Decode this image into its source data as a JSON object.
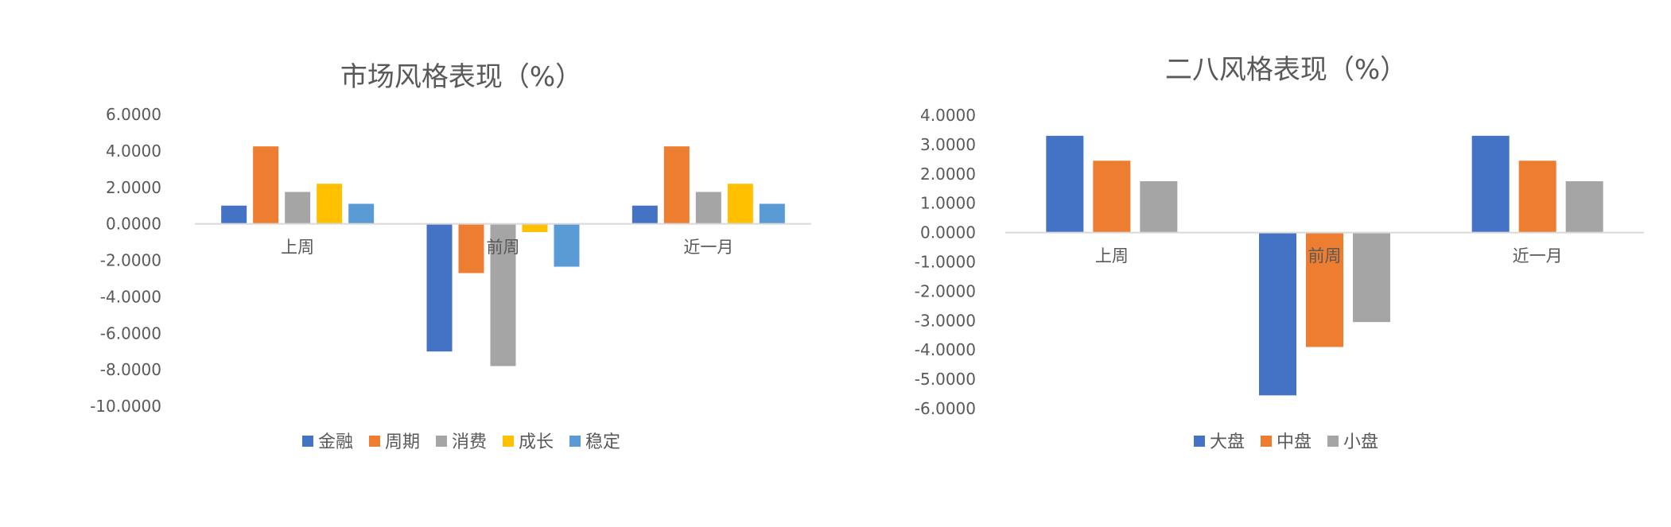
{
  "chart_data": [
    {
      "type": "bar",
      "title": "市场风格表现（%）",
      "xlabel": "",
      "ylabel": "",
      "categories": [
        "上周",
        "前周",
        "近一月"
      ],
      "ylim": [
        -10,
        6
      ],
      "yticks": [
        "6.0000",
        "4.0000",
        "2.0000",
        "0.0000",
        "-2.0000",
        "-4.0000",
        "-6.0000",
        "-8.0000",
        "-10.0000"
      ],
      "series": [
        {
          "name": "金融",
          "color": "#4472C4",
          "values": [
            1.0,
            -7.0,
            1.0
          ]
        },
        {
          "name": "周期",
          "color": "#ED7D31",
          "values": [
            4.25,
            -2.7,
            4.25
          ]
        },
        {
          "name": "消费",
          "color": "#A5A5A5",
          "values": [
            1.75,
            -7.8,
            1.75
          ]
        },
        {
          "name": "成长",
          "color": "#FFC000",
          "values": [
            2.2,
            -0.45,
            2.2
          ]
        },
        {
          "name": "稳定",
          "color": "#5B9BD5",
          "values": [
            1.1,
            -2.35,
            1.1
          ]
        }
      ],
      "grid": false,
      "legend": "bottom"
    },
    {
      "type": "bar",
      "title": "二八风格表现（%）",
      "xlabel": "",
      "ylabel": "",
      "categories": [
        "上周",
        "前周",
        "近一月"
      ],
      "ylim": [
        -6,
        4
      ],
      "yticks": [
        "4.0000",
        "3.0000",
        "2.0000",
        "1.0000",
        "0.0000",
        "-1.0000",
        "-2.0000",
        "-3.0000",
        "-4.0000",
        "-5.0000",
        "-6.0000"
      ],
      "series": [
        {
          "name": "大盘",
          "color": "#4472C4",
          "values": [
            3.3,
            -5.55,
            3.3
          ]
        },
        {
          "name": "中盘",
          "color": "#ED7D31",
          "values": [
            2.45,
            -3.9,
            2.45
          ]
        },
        {
          "name": "小盘",
          "color": "#A5A5A5",
          "values": [
            1.75,
            -3.05,
            1.75
          ]
        }
      ],
      "grid": false,
      "legend": "bottom"
    }
  ]
}
